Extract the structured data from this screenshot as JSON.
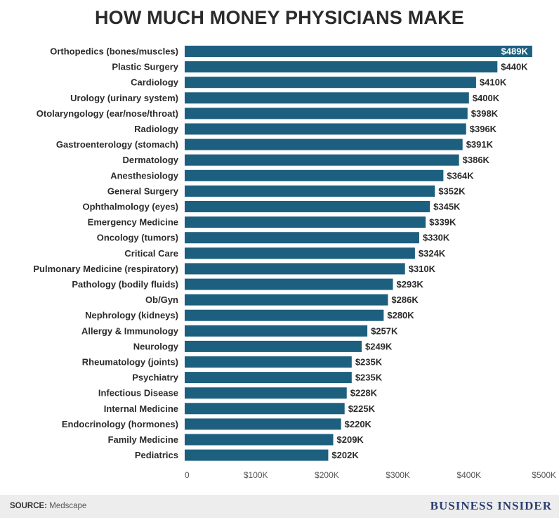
{
  "title": "HOW MUCH MONEY PHYSICIANS MAKE",
  "footer": {
    "source_label": "SOURCE:",
    "source_name": "Medscape",
    "brand": "BUSINESS INSIDER"
  },
  "colors": {
    "bar": "#1d5f7e",
    "text": "#2b2b2b",
    "footer_bg": "#ededed"
  },
  "chart_data": {
    "type": "bar",
    "orientation": "horizontal",
    "title": "HOW MUCH MONEY PHYSICIANS MAKE",
    "xlabel": "",
    "ylabel": "",
    "xlim": [
      0,
      500
    ],
    "x_ticks": [
      0,
      100,
      200,
      300,
      400,
      500
    ],
    "x_tick_labels": [
      "0",
      "$100K",
      "$200K",
      "$300K",
      "$400K",
      "$500K"
    ],
    "grid": false,
    "categories": [
      "Orthopedics (bones/muscles)",
      "Plastic Surgery",
      "Cardiology",
      "Urology (urinary system)",
      "Otolaryngology (ear/nose/throat)",
      "Radiology",
      "Gastroenterology (stomach)",
      "Dermatology",
      "Anesthesiology",
      "General Surgery",
      "Ophthalmology (eyes)",
      "Emergency Medicine",
      "Oncology (tumors)",
      "Critical Care",
      "Pulmonary Medicine (respiratory)",
      "Pathology (bodily fluids)",
      "Ob/Gyn",
      "Nephrology (kidneys)",
      "Allergy & Immunology",
      "Neurology",
      "Rheumatology (joints)",
      "Psychiatry",
      "Infectious Disease",
      "Internal Medicine",
      "Endocrinology (hormones)",
      "Family Medicine",
      "Pediatrics"
    ],
    "values": [
      489,
      440,
      410,
      400,
      398,
      396,
      391,
      386,
      364,
      352,
      345,
      339,
      330,
      324,
      310,
      293,
      286,
      280,
      257,
      249,
      235,
      235,
      228,
      225,
      220,
      209,
      202
    ],
    "value_labels": [
      "$489K",
      "$440K",
      "$410K",
      "$400K",
      "$398K",
      "$396K",
      "$391K",
      "$386K",
      "$364K",
      "$352K",
      "$345K",
      "$339K",
      "$330K",
      "$324K",
      "$310K",
      "$293K",
      "$286K",
      "$280K",
      "$257K",
      "$249K",
      "$235K",
      "$235K",
      "$228K",
      "$225K",
      "$220K",
      "$209K",
      "$202K"
    ]
  }
}
